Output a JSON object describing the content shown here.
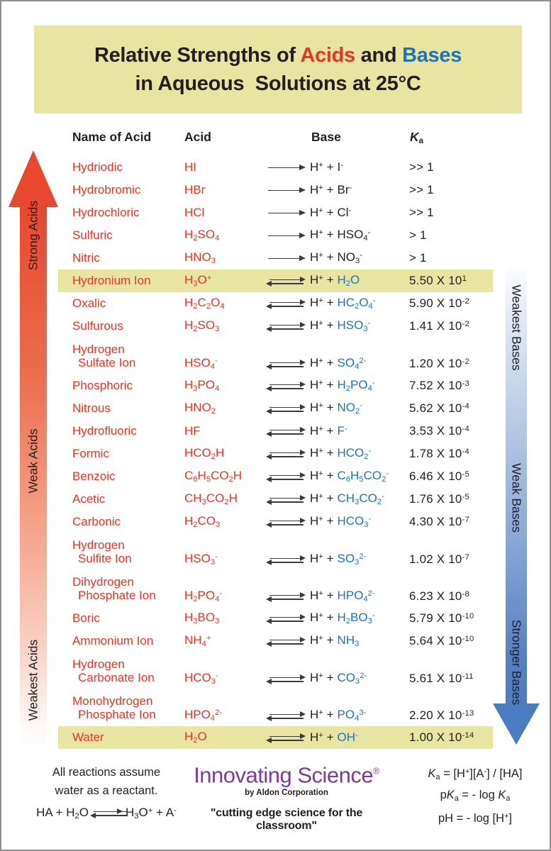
{
  "title": {
    "part1": "Relative Strengths of ",
    "acids": "Acids",
    "and": " and ",
    "bases": "Bases",
    "line2": "in Aqueous  Solutions at 25°C"
  },
  "colors": {
    "banner_yellow": "#e8e4a1",
    "acid_red": "#e73528",
    "base_blue": "#1c74bc",
    "text_dark": "#231f20",
    "arrow_red": "#e8482d",
    "arrow_blue": "#4a7cbf",
    "brand_purple": "#7b3c96"
  },
  "table": {
    "headers": {
      "name": "Name of Acid",
      "acid": "Acid",
      "base": "Base",
      "ka": "`K`_{a}"
    },
    "base_prefix": "H^{+} +",
    "rows": [
      {
        "name": "Hydriodic",
        "acid": "HI",
        "arrow": "forward",
        "base": "I^{-}",
        "blue": false,
        "ka": ">> 1",
        "two": false,
        "highlight": false
      },
      {
        "name": "Hydrobromic",
        "acid": "HBr",
        "arrow": "forward",
        "base": "Br^{-}",
        "blue": false,
        "ka": ">> 1",
        "two": false,
        "highlight": false
      },
      {
        "name": "Hydrochloric",
        "acid": "HCl",
        "arrow": "forward",
        "base": "Cl^{-}",
        "blue": false,
        "ka": ">> 1",
        "two": false,
        "highlight": false
      },
      {
        "name": "Sulfuric",
        "acid": "H_{2}SO_{4}",
        "arrow": "forward",
        "base": "HSO_{4}^{-}",
        "blue": false,
        "ka": "> 1",
        "two": false,
        "highlight": false
      },
      {
        "name": "Nitric",
        "acid": "HNO_{3}",
        "arrow": "forward",
        "base": "NO_{3}^{-}",
        "blue": false,
        "ka": "> 1",
        "two": false,
        "highlight": false
      },
      {
        "name": "Hydronium Ion",
        "acid": "H_{3}O^{+}",
        "arrow": "equilibrium",
        "base": "H_{2}O",
        "blue": true,
        "ka": "5.50 X 10^{1}",
        "two": false,
        "highlight": true
      },
      {
        "name": "Oxalic",
        "acid": "H_{2}C_{2}O_{4}",
        "arrow": "equilibrium",
        "base": "HC_{2}O_{4}^{-}",
        "blue": true,
        "ka": "5.90 X 10^{-2}",
        "two": false,
        "highlight": false
      },
      {
        "name": "Sulfurous",
        "acid": "H_{2}SO_{3}",
        "arrow": "equilibrium",
        "base": "HSO_{3}^{-}",
        "blue": true,
        "ka": "1.41 X 10^{-2}",
        "two": false,
        "highlight": false
      },
      {
        "name": "Hydrogen\nSulfate Ion",
        "acid": "HSO_{4}^{-}",
        "arrow": "equilibrium",
        "base": "SO_{4}^{2-}",
        "blue": true,
        "ka": "1.20 X 10^{-2}",
        "two": true,
        "highlight": false
      },
      {
        "name": "Phosphoric",
        "acid": "H_{3}PO_{4}",
        "arrow": "equilibrium",
        "base": "H_{2}PO_{4}^{-}",
        "blue": true,
        "ka": "7.52 X 10^{-3}",
        "two": false,
        "highlight": false
      },
      {
        "name": "Nitrous",
        "acid": "HNO_{2}",
        "arrow": "equilibrium",
        "base": "NO_{2}^{-}",
        "blue": true,
        "ka": "5.62 X 10^{-4}",
        "two": false,
        "highlight": false
      },
      {
        "name": "Hydrofluoric",
        "acid": "HF",
        "arrow": "equilibrium",
        "base": "F^{-}",
        "blue": true,
        "ka": "3.53 X 10^{-4}",
        "two": false,
        "highlight": false
      },
      {
        "name": "Formic",
        "acid": "HCO_{2}H",
        "arrow": "equilibrium",
        "base": "HCO_{2}^{-}",
        "blue": true,
        "ka": "1.78 X 10^{-4}",
        "two": false,
        "highlight": false
      },
      {
        "name": "Benzoic",
        "acid": "C_{6}H_{5}CO_{2}H",
        "arrow": "equilibrium",
        "base": "C_{6}H_{5}CO_{2}^{-}",
        "blue": true,
        "ka": "6.46 X 10^{-5}",
        "two": false,
        "highlight": false
      },
      {
        "name": "Acetic",
        "acid": "CH_{3}CO_{2}H",
        "arrow": "equilibrium",
        "base": "CH_{3}CO_{2}^{-}",
        "blue": true,
        "ka": "1.76 X 10^{-5}",
        "two": false,
        "highlight": false
      },
      {
        "name": "Carbonic",
        "acid": "H_{2}CO_{3}",
        "arrow": "equilibrium",
        "base": "HCO_{3}^{-}",
        "blue": true,
        "ka": "4.30 X 10^{-7}",
        "two": false,
        "highlight": false
      },
      {
        "name": "Hydrogen\nSulfite Ion",
        "acid": "HSO_{3}^{-}",
        "arrow": "equilibrium",
        "base": "SO_{3}^{2-}",
        "blue": true,
        "ka": "1.02 X 10^{-7}",
        "two": true,
        "highlight": false
      },
      {
        "name": "Dihydrogen\nPhosphate Ion",
        "acid": "H_{2}PO_{4}^{-}",
        "arrow": "equilibrium",
        "base": "HPO_{4}^{2-}",
        "blue": true,
        "ka": "6.23 X 10^{-8}",
        "two": true,
        "highlight": false
      },
      {
        "name": "Boric",
        "acid": "H_{3}BO_{3}",
        "arrow": "equilibrium",
        "base": "H_{2}BO_{3}^{-}",
        "blue": true,
        "ka": "5.79 X 10^{-10}",
        "two": false,
        "highlight": false
      },
      {
        "name": "Ammonium Ion",
        "acid": "NH_{4}^{+}",
        "arrow": "equilibrium",
        "base": "NH_{3}",
        "blue": true,
        "ka": "5.64 X 10^{-10}",
        "two": false,
        "highlight": false
      },
      {
        "name": "Hydrogen\nCarbonate Ion",
        "acid": "HCO_{3}^{-}",
        "arrow": "equilibrium",
        "base": "CO_{3}^{2-}",
        "blue": true,
        "ka": "5.61 X 10^{-11}",
        "two": true,
        "highlight": false
      },
      {
        "name": "Monohydrogen\nPhosphate Ion",
        "acid": "HPO_{4}^{2-}",
        "arrow": "equilibrium",
        "base": "PO_{4}^{3-}",
        "blue": true,
        "ka": "2.20 X 10^{-13}",
        "two": true,
        "highlight": false
      },
      {
        "name": "Water",
        "acid": "H_{2}O",
        "arrow": "equilibrium",
        "base": "OH^{-}",
        "blue": true,
        "ka": "1.00 X 10^{-14}",
        "two": false,
        "highlight": true
      }
    ]
  },
  "left_arrow": {
    "labels": [
      "Strong Acids",
      "Weak Acids",
      "Weakest Acids"
    ]
  },
  "right_arrow": {
    "labels": [
      "Weakest Bases",
      "Weak Bases",
      "Stronger Bases"
    ]
  },
  "footer": {
    "note_line1": "All reactions assume",
    "note_line2": "water as a reactant.",
    "reaction_left": "HA + H_{2}O",
    "reaction_right": "H_{3}O^{+} + A^{-}",
    "brand": "Innovating Science",
    "reg": "®",
    "byline": "by Aldon Corporation",
    "tagline": "\"cutting edge science for the classroom\"",
    "eq1": "`K`_{a} = [H^{+}][A^{-}] / [HA]",
    "eq2": "p`K`_{a} = - log `K`_{a}",
    "eq3": "pH = - log [H^{+}]"
  }
}
